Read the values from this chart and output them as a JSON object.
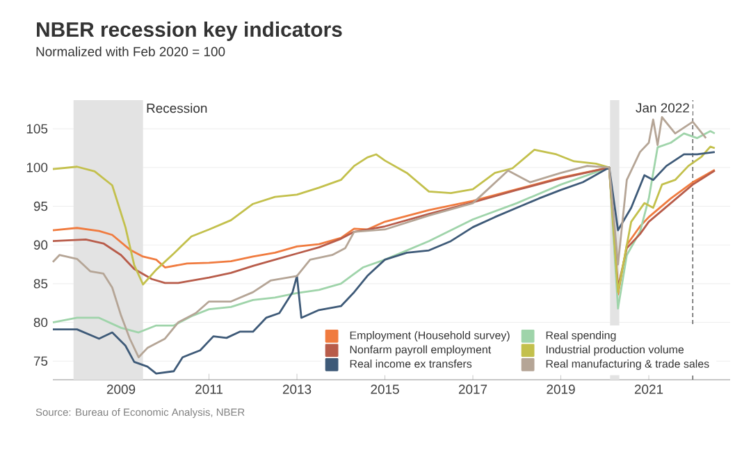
{
  "chart_data": {
    "type": "line",
    "title": "NBER recession key indicators",
    "subtitle": "Normalized with Feb 2020 = 100",
    "xlim": [
      2007.45,
      2022.85
    ],
    "xticks": [
      2009,
      2011,
      2013,
      2015,
      2017,
      2019,
      2021
    ],
    "ylim": [
      72.6,
      108.7
    ],
    "yticks": [
      75,
      80,
      85,
      90,
      95,
      100,
      105
    ],
    "grid": "y",
    "legend": "bottom right",
    "line_style": "solid",
    "marker": "none",
    "bands": [
      {
        "axis": "x",
        "from": 2007.92,
        "to": 2009.5,
        "label": "Recession",
        "color": "#e3e3e3"
      },
      {
        "axis": "x",
        "from": 2020.12,
        "to": 2020.33,
        "color": "#e3e3e3"
      }
    ],
    "ref_lines": [
      {
        "axis": "x",
        "value": 2022.0,
        "label": "Jan 2022",
        "color": "#555555",
        "line_style": "dashed"
      }
    ],
    "series": [
      {
        "name": "Employment (Household survey)",
        "color": "#f07b3f",
        "x": [
          2007.45,
          2008.0,
          2008.5,
          2008.8,
          2009.2,
          2009.5,
          2009.8,
          2010.0,
          2010.5,
          2011,
          2011.5,
          2012,
          2012.5,
          2013,
          2013.5,
          2014,
          2014.3,
          2014.6,
          2015,
          2016,
          2017,
          2018,
          2019,
          2020.1,
          2020.3,
          2020.5,
          2020.8,
          2021,
          2021.5,
          2022,
          2022.5
        ],
        "values": [
          91.9,
          92.2,
          91.8,
          91.3,
          89.4,
          88.5,
          88.1,
          87.1,
          87.6,
          87.7,
          87.9,
          88.5,
          89,
          89.8,
          90.1,
          90.9,
          92.1,
          92,
          93,
          94.5,
          95.7,
          97.2,
          98.7,
          100,
          83.6,
          90,
          92.4,
          93.6,
          96,
          98.1,
          99.7
        ]
      },
      {
        "name": "Real spending",
        "color": "#9fd4aa",
        "x": [
          2007.45,
          2008,
          2008.5,
          2009,
          2009.4,
          2009.8,
          2010.2,
          2010.6,
          2011,
          2011.5,
          2012,
          2012.5,
          2013,
          2013.5,
          2014,
          2014.5,
          2015,
          2016,
          2017,
          2018,
          2019,
          2020.1,
          2020.3,
          2020.5,
          2020.8,
          2021.0,
          2021.2,
          2021.5,
          2021.8,
          2022.1,
          2022.4,
          2022.5
        ],
        "values": [
          80,
          80.6,
          80.6,
          79.3,
          78.7,
          79.6,
          79.6,
          80.8,
          81.7,
          82,
          82.9,
          83.2,
          83.8,
          84.2,
          85,
          87.1,
          88.1,
          90.5,
          93.3,
          95.4,
          97.8,
          100,
          81.8,
          88.7,
          91.7,
          96,
          102.6,
          103.2,
          104.4,
          103.8,
          104.7,
          104.4
        ]
      },
      {
        "name": "Nonfarm payroll employment",
        "color": "#b85c4a",
        "x": [
          2007.45,
          2008.2,
          2008.6,
          2009,
          2009.3,
          2009.7,
          2010,
          2010.3,
          2011,
          2011.5,
          2012,
          2012.5,
          2013,
          2013.5,
          2014,
          2014.3,
          2015,
          2016,
          2017,
          2018,
          2019,
          2020.1,
          2020.3,
          2020.5,
          2020.8,
          2021,
          2021.5,
          2022,
          2022.5
        ],
        "values": [
          90.5,
          90.7,
          90.2,
          88.7,
          86.9,
          85.6,
          85.1,
          85.1,
          85.8,
          86.4,
          87.3,
          88.1,
          88.9,
          89.7,
          90.8,
          91.7,
          92.4,
          94,
          95.5,
          97.1,
          98.6,
          100,
          84.5,
          89.6,
          91.4,
          93,
          95.4,
          97.8,
          99.6
        ]
      },
      {
        "name": "Industrial production volume",
        "color": "#c3c04c",
        "x": [
          2007.45,
          2008,
          2008.4,
          2008.8,
          2008.9,
          2009.1,
          2009.3,
          2009.5,
          2009.8,
          2010.2,
          2010.6,
          2011,
          2011.5,
          2012,
          2012.5,
          2013,
          2013.5,
          2014,
          2014.3,
          2014.6,
          2014.8,
          2015,
          2015.5,
          2016,
          2016.5,
          2017,
          2017.5,
          2017.9,
          2018.4,
          2018.9,
          2019.3,
          2019.8,
          2020.1,
          2020.3,
          2020.6,
          2020.9,
          2021.1,
          2021.3,
          2021.6,
          2021.9,
          2022.2,
          2022.4,
          2022.5
        ],
        "values": [
          99.8,
          100.1,
          99.5,
          97.7,
          95.9,
          92.3,
          87.4,
          84.9,
          86.8,
          88.9,
          91.1,
          92,
          93.2,
          95.3,
          96.2,
          96.5,
          97.4,
          98.4,
          100.2,
          101.3,
          101.7,
          100.9,
          99.3,
          96.9,
          96.7,
          97.2,
          99.3,
          99.9,
          102.3,
          101.7,
          100.8,
          100.5,
          100,
          83.9,
          93,
          95.4,
          94.8,
          97.8,
          98.4,
          100.2,
          101.4,
          102.7,
          102.5
        ]
      },
      {
        "name": "Real income ex transfers",
        "color": "#3e5a78",
        "x": [
          2007.45,
          2008,
          2008.5,
          2008.8,
          2009.1,
          2009.3,
          2009.6,
          2009.8,
          2010.2,
          2010.4,
          2010.8,
          2011.1,
          2011.4,
          2011.7,
          2012,
          2012.3,
          2012.6,
          2012.9,
          2013.0,
          2013.1,
          2013.5,
          2014,
          2014.3,
          2014.6,
          2015,
          2015.5,
          2016,
          2016.5,
          2017,
          2017.5,
          2018,
          2018.5,
          2019,
          2019.5,
          2020.1,
          2020.3,
          2020.6,
          2020.9,
          2021.1,
          2021.4,
          2021.8,
          2022.1,
          2022.5
        ],
        "values": [
          79.1,
          79.1,
          77.9,
          78.7,
          77,
          74.9,
          74.3,
          73.4,
          73.7,
          75.5,
          76.4,
          78.2,
          78,
          78.8,
          78.8,
          80.6,
          81.2,
          83.9,
          86,
          80.6,
          81.6,
          82.1,
          83.9,
          86,
          88.1,
          89,
          89.3,
          90.5,
          92.3,
          93.6,
          94.8,
          96,
          97.1,
          98.1,
          100,
          91.9,
          94.8,
          99,
          98.4,
          100.2,
          101.7,
          101.7,
          102
        ]
      },
      {
        "name": "Real manufacturing & trade sales",
        "color": "#b5a596",
        "x": [
          2007.45,
          2007.6,
          2008,
          2008.3,
          2008.6,
          2008.8,
          2009.0,
          2009.2,
          2009.4,
          2009.6,
          2010,
          2010.3,
          2010.7,
          2011,
          2011.5,
          2012,
          2012.4,
          2013,
          2013.3,
          2013.8,
          2014.1,
          2014.3,
          2015,
          2016,
          2017,
          2017.8,
          2018.3,
          2019,
          2019.6,
          2020.1,
          2020.3,
          2020.5,
          2020.8,
          2021.0,
          2021.1,
          2021.2,
          2021.3,
          2021.6,
          2022,
          2022.3
        ],
        "values": [
          87.8,
          88.7,
          88.2,
          86.6,
          86.3,
          84.5,
          80.9,
          77.9,
          75.5,
          76.7,
          77.9,
          80,
          81.2,
          82.7,
          82.7,
          83.9,
          85.4,
          86,
          88.1,
          88.7,
          89.6,
          91.7,
          92,
          93.8,
          95.4,
          99.6,
          98.1,
          99.3,
          100.2,
          100,
          87.5,
          98.4,
          102,
          103.2,
          106.2,
          102.9,
          106.5,
          104.4,
          105.9,
          103.8
        ]
      }
    ],
    "annotations": [
      "Source: Bureau of Economic Analysis, NBER"
    ]
  }
}
